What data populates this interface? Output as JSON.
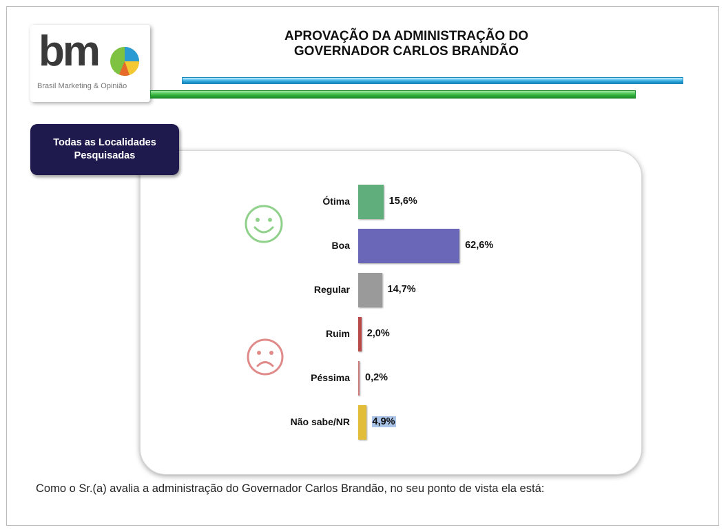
{
  "logo": {
    "text": "bm",
    "subtitle": "Brasil Marketing & Opinião"
  },
  "header": {
    "title_line1": "APROVAÇÃO DA ADMINISTRAÇÃO DO",
    "title_line2": "GOVERNADOR CARLOS BRANDÃO"
  },
  "tag": {
    "line1": "Todas as Localidades",
    "line2": "Pesquisadas"
  },
  "question": "Como o Sr.(a) avalia a administração do Governador Carlos Brandão, no seu ponto de vista ela está:",
  "colors": {
    "happy_face": "#8fd18a",
    "sad_face": "#e08a8a",
    "tag_bg": "#1e1a4d"
  },
  "chart_data": {
    "type": "bar",
    "orientation": "horizontal",
    "title": "APROVAÇÃO DA ADMINISTRAÇÃO DO GOVERNADOR CARLOS BRANDÃO",
    "categories": [
      "Ótima",
      "Boa",
      "Regular",
      "Ruim",
      "Péssima",
      "Não sabe/NR"
    ],
    "values": [
      15.6,
      62.6,
      14.7,
      2.0,
      0.2,
      4.9
    ],
    "value_labels": [
      "15,6%",
      "62,6%",
      "14,7%",
      "2,0%",
      "0,2%",
      "4,9%"
    ],
    "colors": [
      "#5fae7c",
      "#6a66b8",
      "#9a9a9a",
      "#b94a4a",
      "#c97a7a",
      "#e2bd3a"
    ],
    "xlim": [
      0,
      100
    ],
    "unit": "%"
  }
}
